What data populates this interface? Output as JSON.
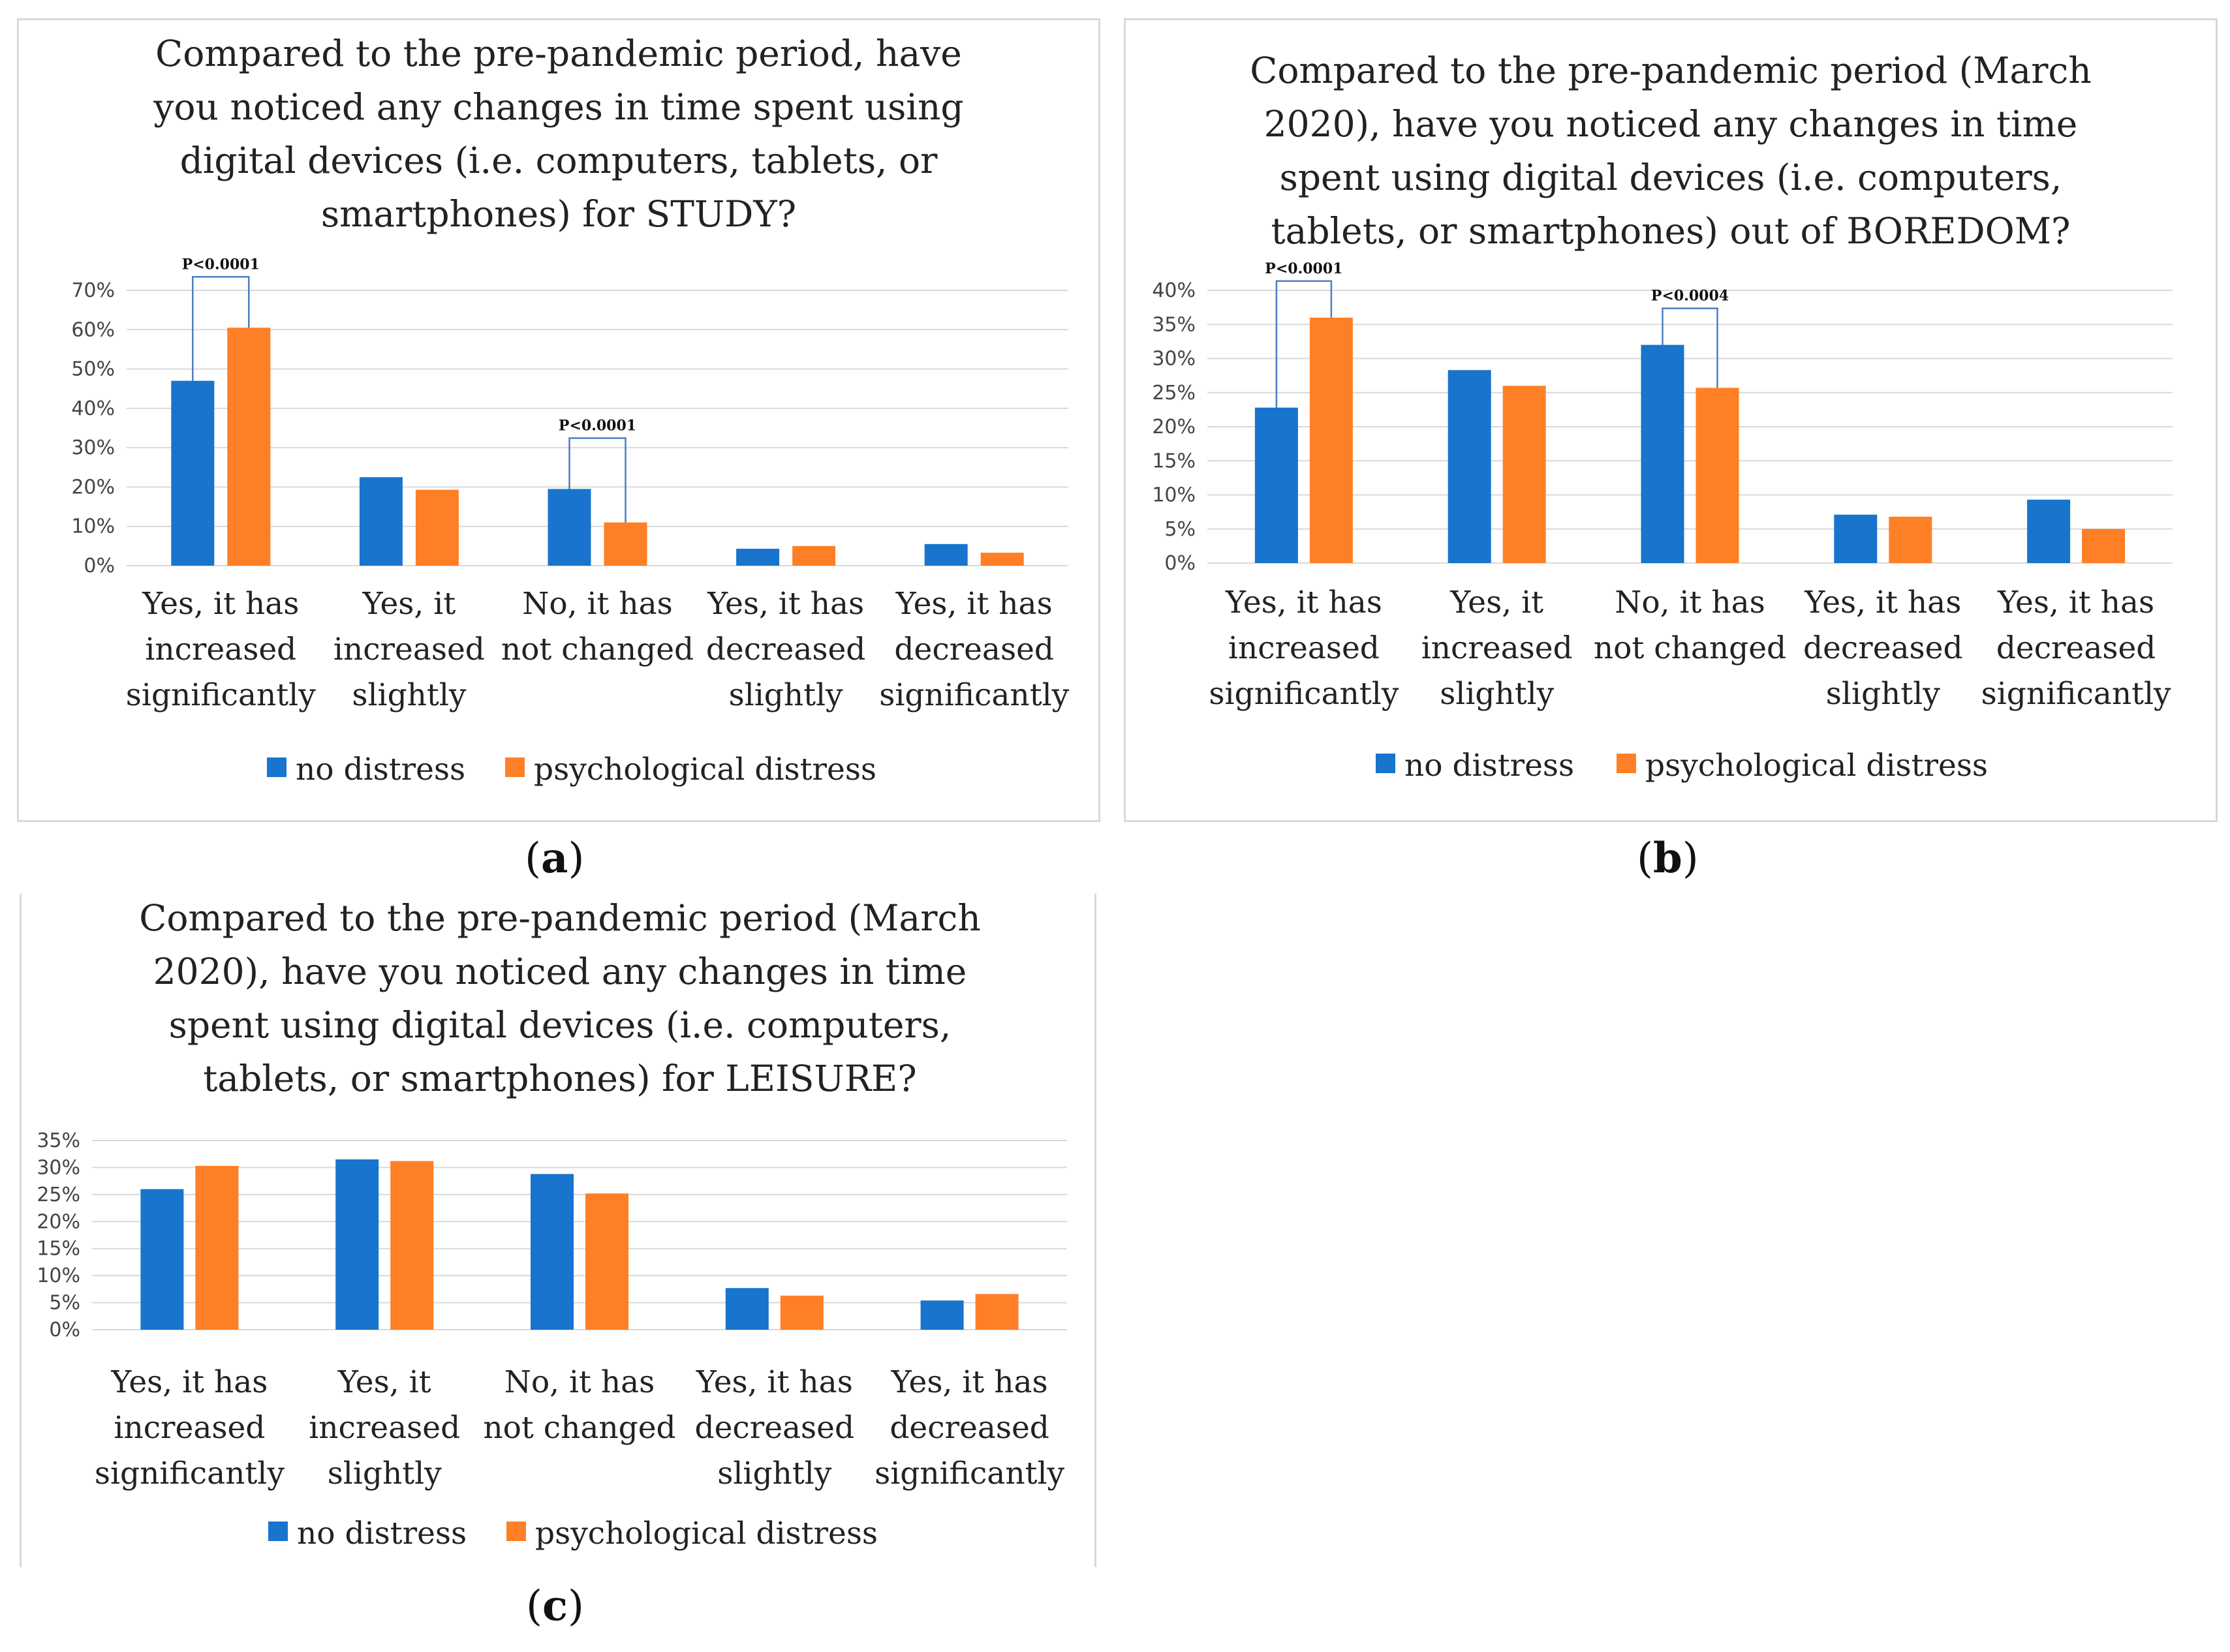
{
  "figure": {
    "legend": {
      "series_1": "no distress",
      "series_2": "psychological distress"
    },
    "colors": {
      "no_distress": "#1874cd",
      "psychological_distress": "#ff7f27",
      "grid": "#d9d9d9",
      "annotation": "#4a7fc1"
    }
  },
  "chart_data": [
    {
      "id": "a",
      "panel_label": "a",
      "type": "bar",
      "title_lines": [
        "Compared to the pre-pandemic period, have",
        "you noticed any changes in time spent using",
        "digital devices (i.e. computers, tablets, or",
        "smartphones) for STUDY?"
      ],
      "categories": [
        [
          "Yes, it has",
          "increased",
          "significantly"
        ],
        [
          "Yes, it",
          "increased",
          "slightly"
        ],
        [
          "No, it has",
          "not changed"
        ],
        [
          "Yes, it has",
          "decreased",
          "slightly"
        ],
        [
          "Yes, it has",
          "decreased",
          "significantly"
        ]
      ],
      "series": [
        {
          "name": "no distress",
          "values": [
            47,
            22.5,
            19.5,
            4.3,
            5.5
          ]
        },
        {
          "name": "psychological distress",
          "values": [
            60.5,
            19.3,
            11,
            5,
            3.3
          ]
        }
      ],
      "ylim": [
        0,
        70
      ],
      "yticks": [
        0,
        10,
        20,
        30,
        40,
        50,
        60,
        70
      ],
      "ytick_labels": [
        "0%",
        "10%",
        "20%",
        "30%",
        "40%",
        "50%",
        "60%",
        "70%"
      ],
      "annotations": [
        {
          "category": 0,
          "text": "P<0.0001"
        },
        {
          "category": 2,
          "text": "P<0.0001"
        }
      ]
    },
    {
      "id": "b",
      "panel_label": "b",
      "type": "bar",
      "title_lines": [
        "Compared to the pre-pandemic period (March",
        "2020), have you noticed any changes in time",
        "spent using digital devices (i.e. computers,",
        "tablets, or smartphones) out of BOREDOM?"
      ],
      "categories": [
        [
          "Yes, it has",
          "increased",
          "significantly"
        ],
        [
          "Yes, it",
          "increased",
          "slightly"
        ],
        [
          "No, it has",
          "not changed"
        ],
        [
          "Yes, it has",
          "decreased",
          "slightly"
        ],
        [
          "Yes, it has",
          "decreased",
          "significantly"
        ]
      ],
      "series": [
        {
          "name": "no distress",
          "values": [
            22.8,
            28.3,
            32,
            7.1,
            9.3
          ]
        },
        {
          "name": "psychological distress",
          "values": [
            36,
            26,
            25.7,
            6.8,
            5
          ]
        }
      ],
      "ylim": [
        0,
        40
      ],
      "yticks": [
        0,
        5,
        10,
        15,
        20,
        25,
        30,
        35,
        40
      ],
      "ytick_labels": [
        "0%",
        "5%",
        "10%",
        "15%",
        "20%",
        "25%",
        "30%",
        "35%",
        "40%"
      ],
      "annotations": [
        {
          "category": 0,
          "text": "P<0.0001"
        },
        {
          "category": 2,
          "text": "P<0.0004"
        }
      ]
    },
    {
      "id": "c",
      "panel_label": "c",
      "type": "bar",
      "title_lines": [
        "Compared to the pre-pandemic period (March",
        "2020), have you noticed any changes in time",
        "spent using digital devices (i.e. computers,",
        "tablets, or smartphones) for LEISURE?"
      ],
      "categories": [
        [
          "Yes, it has",
          "increased",
          "significantly"
        ],
        [
          "Yes, it",
          "increased",
          "slightly"
        ],
        [
          "No, it has",
          "not changed"
        ],
        [
          "Yes, it has",
          "decreased",
          "slightly"
        ],
        [
          "Yes, it has",
          "decreased",
          "significantly"
        ]
      ],
      "series": [
        {
          "name": "no distress",
          "values": [
            26,
            31.5,
            28.8,
            7.7,
            5.4
          ]
        },
        {
          "name": "psychological distress",
          "values": [
            30.3,
            31.2,
            25.2,
            6.3,
            6.6
          ]
        }
      ],
      "ylim": [
        0,
        35
      ],
      "yticks": [
        0,
        5,
        10,
        15,
        20,
        25,
        30,
        35
      ],
      "ytick_labels": [
        "0%",
        "5%",
        "10%",
        "15%",
        "20%",
        "25%",
        "30%",
        "35%"
      ],
      "annotations": []
    }
  ]
}
